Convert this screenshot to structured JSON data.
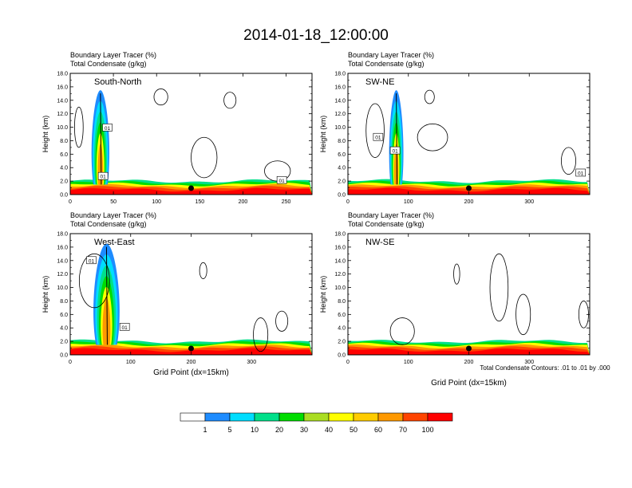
{
  "title": "2014-01-18_12:00:00",
  "chart_data": {
    "type": "contour-cross-section",
    "panels": [
      {
        "id": "south-north",
        "label": "South-North",
        "header_lines": [
          "Boundary Layer Tracer   (%)",
          "Total Condensate   (g/kg)"
        ],
        "ylabel": "Height (km)",
        "xlabel": "",
        "xlim": [
          0,
          280
        ],
        "ylim": [
          0,
          18
        ],
        "xticks": [
          0,
          50,
          100,
          150,
          200,
          250
        ],
        "yticks": [
          0,
          2,
          4,
          6,
          8,
          10,
          12,
          14,
          16,
          18
        ],
        "marker_x": 140,
        "contour_labels": [
          {
            "text": "01",
            "x": 43,
            "y": 9.9
          },
          {
            "text": "01",
            "x": 38,
            "y": 2.7
          },
          {
            "text": "01",
            "x": 245,
            "y": 2.1
          }
        ],
        "plumes": [
          {
            "x": 35,
            "top": 15.5,
            "width": 15
          }
        ],
        "cloud_outlines": [
          {
            "x": 10,
            "y": 10,
            "rx": 5,
            "ry": 3
          },
          {
            "x": 105,
            "y": 14.5,
            "rx": 8,
            "ry": 1.2
          },
          {
            "x": 185,
            "y": 14,
            "rx": 7,
            "ry": 1.2
          },
          {
            "x": 155,
            "y": 5.5,
            "rx": 15,
            "ry": 3
          },
          {
            "x": 240,
            "y": 3.5,
            "rx": 15,
            "ry": 1.5
          }
        ]
      },
      {
        "id": "sw-ne",
        "label": "SW-NE",
        "header_lines": [
          "Boundary Layer Tracer   (%)",
          "Total Condensate   (g/kg)"
        ],
        "ylabel": "Height (km)",
        "xlabel": "",
        "xlim": [
          0,
          400
        ],
        "ylim": [
          0,
          18
        ],
        "xticks": [
          0,
          100,
          200,
          300
        ],
        "yticks": [
          0,
          2,
          4,
          6,
          8,
          10,
          12,
          14,
          16,
          18
        ],
        "marker_x": 200,
        "contour_labels": [
          {
            "text": "01",
            "x": 50,
            "y": 8.5
          },
          {
            "text": "01",
            "x": 78,
            "y": 6.5
          },
          {
            "text": "01",
            "x": 385,
            "y": 3.2
          }
        ],
        "plumes": [
          {
            "x": 80,
            "top": 15.5,
            "width": 12
          }
        ],
        "cloud_outlines": [
          {
            "x": 45,
            "y": 9.5,
            "rx": 15,
            "ry": 4
          },
          {
            "x": 140,
            "y": 8.5,
            "rx": 25,
            "ry": 2
          },
          {
            "x": 135,
            "y": 14.5,
            "rx": 8,
            "ry": 1
          },
          {
            "x": 365,
            "y": 5,
            "rx": 12,
            "ry": 2
          }
        ]
      },
      {
        "id": "west-east",
        "label": "West-East",
        "header_lines": [
          "Boundary Layer Tracer   (%)",
          "Total Condensate   (g/kg)"
        ],
        "ylabel": "Height (km)",
        "xlabel": "Grid Point (dx=15km)",
        "xlim": [
          0,
          400
        ],
        "ylim": [
          0,
          18
        ],
        "xticks": [
          0,
          100,
          200,
          300
        ],
        "yticks": [
          0,
          2,
          4,
          6,
          8,
          10,
          12,
          14,
          16,
          18
        ],
        "marker_x": 200,
        "contour_labels": [
          {
            "text": "01",
            "x": 35,
            "y": 14
          },
          {
            "text": "01",
            "x": 90,
            "y": 4.1
          }
        ],
        "plumes": [
          {
            "x": 60,
            "top": 16.5,
            "width": 22
          }
        ],
        "cloud_outlines": [
          {
            "x": 40,
            "y": 11,
            "rx": 25,
            "ry": 4
          },
          {
            "x": 220,
            "y": 12.5,
            "rx": 6,
            "ry": 1.2
          },
          {
            "x": 315,
            "y": 3,
            "rx": 12,
            "ry": 2.5
          },
          {
            "x": 350,
            "y": 5,
            "rx": 10,
            "ry": 1.5
          }
        ]
      },
      {
        "id": "nw-se",
        "label": "NW-SE",
        "header_lines": [
          "Boundary Layer Tracer   (%)",
          "Total Condensate   (g/kg)"
        ],
        "ylabel": "Height (km)",
        "xlabel": "Grid Point (dx=15km)",
        "xlim": [
          0,
          400
        ],
        "ylim": [
          0,
          18
        ],
        "xticks": [
          0,
          100,
          200,
          300
        ],
        "yticks": [
          0,
          2,
          4,
          6,
          8,
          10,
          12,
          14,
          16,
          18
        ],
        "marker_x": 200,
        "contour_labels": [],
        "plumes": [],
        "cloud_outlines": [
          {
            "x": 250,
            "y": 10,
            "rx": 15,
            "ry": 5
          },
          {
            "x": 290,
            "y": 6,
            "rx": 12,
            "ry": 3
          },
          {
            "x": 90,
            "y": 3.5,
            "rx": 20,
            "ry": 2
          },
          {
            "x": 180,
            "y": 12,
            "rx": 5,
            "ry": 1.5
          },
          {
            "x": 390,
            "y": 6,
            "rx": 8,
            "ry": 2
          }
        ]
      }
    ],
    "footnote": "Total Condensate Contours: .01 to .01 by .000",
    "colorbar": {
      "boundaries": [
        "1",
        "5",
        "10",
        "20",
        "30",
        "40",
        "50",
        "60",
        "70",
        "100"
      ],
      "colors": [
        "#ffffff",
        "#1e8cff",
        "#00ddff",
        "#00e08a",
        "#00dd00",
        "#aadd22",
        "#ffff00",
        "#ffcc00",
        "#ff9900",
        "#ff4400",
        "#ff0000"
      ]
    }
  }
}
